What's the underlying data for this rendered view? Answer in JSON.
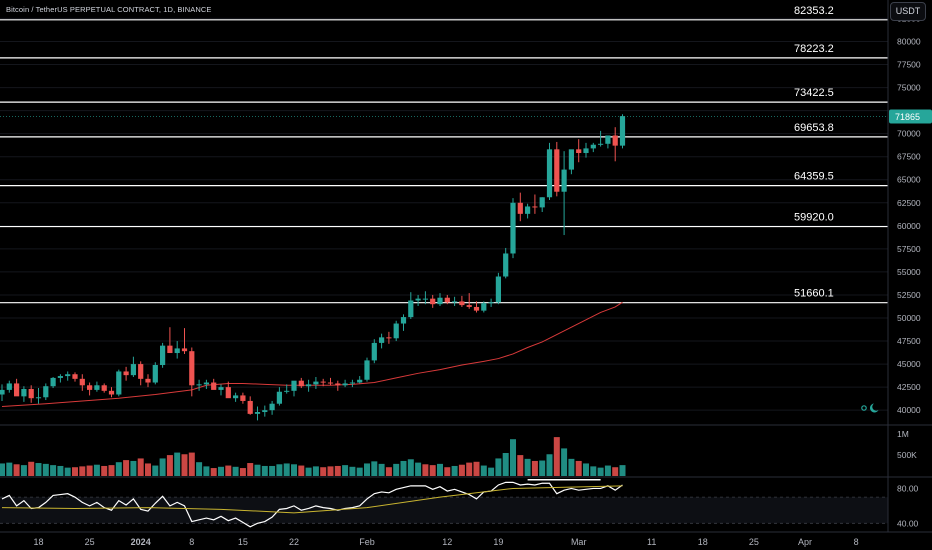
{
  "header": {
    "title": "Bitcoin / TetherUS PERPETUAL CONTRACT, 1D, BINANCE",
    "currency": "USDT"
  },
  "icons": {
    "theme": "moon-icon",
    "settings": "gear-icon"
  },
  "colors": {
    "background": "#000000",
    "up": "#26a69a",
    "down": "#ef5350",
    "ma": "#d83a3a",
    "rsi": "#ffffff",
    "rsi_ma": "#c8b430",
    "level_line": "#ffffff",
    "price_badge": "#26a69a"
  },
  "chart_data": [
    {
      "type": "candlestick",
      "title": "Bitcoin / TetherUS PERPETUAL CONTRACT, 1D, BINANCE",
      "ylim": [
        38500,
        84500
      ],
      "y_ticks": [
        40000,
        42500,
        45000,
        47500,
        50000,
        52500,
        55000,
        57500,
        60000,
        62500,
        65000,
        67500,
        70000,
        72500,
        75000,
        77500,
        80000,
        82500
      ],
      "y_tick_labels": [
        "40000",
        "42500",
        "45000",
        "47500",
        "50000",
        "52500",
        "55000",
        "57500",
        "60000",
        "62500",
        "65000",
        "67500",
        "70000",
        "72500",
        "75000",
        "77500",
        "80000",
        "82500"
      ],
      "x_tick_labels": [
        {
          "label": "18",
          "date": "2023-12-18"
        },
        {
          "label": "25",
          "date": "2023-12-25"
        },
        {
          "label": "2024",
          "date": "2024-01-01"
        },
        {
          "label": "8",
          "date": "2024-01-08"
        },
        {
          "label": "15",
          "date": "2024-01-15"
        },
        {
          "label": "22",
          "date": "2024-01-22"
        },
        {
          "label": "Feb",
          "date": "2024-02-01"
        },
        {
          "label": "12",
          "date": "2024-02-12"
        },
        {
          "label": "19",
          "date": "2024-02-19"
        },
        {
          "label": "Mar",
          "date": "2024-03-01"
        },
        {
          "label": "11",
          "date": "2024-03-11"
        },
        {
          "label": "18",
          "date": "2024-03-18"
        },
        {
          "label": "25",
          "date": "2024-03-25"
        },
        {
          "label": "Apr",
          "date": "2024-04-01"
        },
        {
          "label": "8",
          "date": "2024-04-08"
        }
      ],
      "first_date": "2023-12-13",
      "last_price": {
        "label": "71865",
        "value": 71865
      },
      "levels": [
        {
          "label": "82353.2",
          "value": 82353.2
        },
        {
          "label": "78223.2",
          "value": 78223.2
        },
        {
          "label": "73422.5",
          "value": 73422.5
        },
        {
          "label": "69653.8",
          "value": 69653.8
        },
        {
          "label": "64359.5",
          "value": 64359.5
        },
        {
          "label": "59920.0",
          "value": 59920.0
        },
        {
          "label": "51660.1",
          "value": 51660.1
        }
      ],
      "ohlc": [
        [
          41700,
          42800,
          41000,
          42200
        ],
        [
          42200,
          43200,
          41900,
          42900
        ],
        [
          42900,
          43400,
          41800,
          41500
        ],
        [
          41500,
          42600,
          40900,
          42300
        ],
        [
          42300,
          42700,
          40800,
          41300
        ],
        [
          41300,
          42400,
          40700,
          41400
        ],
        [
          41400,
          42900,
          41100,
          42600
        ],
        [
          42600,
          43600,
          42400,
          43500
        ],
        [
          43500,
          43900,
          43000,
          43700
        ],
        [
          43700,
          44200,
          43200,
          43900
        ],
        [
          43900,
          44100,
          43100,
          43400
        ],
        [
          43400,
          43900,
          42100,
          42700
        ],
        [
          42700,
          43000,
          41600,
          42200
        ],
        [
          42200,
          43100,
          42000,
          42700
        ],
        [
          42700,
          42900,
          41900,
          42100
        ],
        [
          42100,
          42500,
          41400,
          41700
        ],
        [
          41700,
          44400,
          41500,
          44200
        ],
        [
          44200,
          44700,
          43200,
          43800
        ],
        [
          43800,
          45800,
          43600,
          45000
        ],
        [
          45000,
          45300,
          42700,
          43400
        ],
        [
          43400,
          43900,
          42500,
          43000
        ],
        [
          43000,
          45200,
          42800,
          44900
        ],
        [
          44900,
          47300,
          44600,
          47000
        ],
        [
          47000,
          49000,
          46500,
          46200
        ],
        [
          46200,
          47500,
          45600,
          46700
        ],
        [
          46700,
          48900,
          46100,
          46400
        ],
        [
          46400,
          46800,
          41500,
          42700
        ],
        [
          42700,
          43300,
          42100,
          42800
        ],
        [
          42800,
          43300,
          42300,
          43000
        ],
        [
          43000,
          43400,
          42500,
          42200
        ],
        [
          42200,
          42800,
          41600,
          42500
        ],
        [
          42500,
          43100,
          41700,
          41300
        ],
        [
          41300,
          41900,
          40900,
          41600
        ],
        [
          41600,
          41900,
          40700,
          41000
        ],
        [
          41000,
          41500,
          39500,
          39600
        ],
        [
          39600,
          40400,
          38900,
          39800
        ],
        [
          39800,
          40500,
          39300,
          40000
        ],
        [
          40000,
          41000,
          39500,
          40700
        ],
        [
          40700,
          42500,
          40500,
          42000
        ],
        [
          42000,
          42800,
          41800,
          42100
        ],
        [
          42100,
          43000,
          41500,
          43200
        ],
        [
          43200,
          43500,
          42400,
          42600
        ],
        [
          42600,
          43300,
          42000,
          42800
        ],
        [
          42800,
          43600,
          42300,
          43100
        ],
        [
          43100,
          43400,
          42600,
          43000
        ],
        [
          43000,
          43500,
          42700,
          42900
        ],
        [
          42900,
          43200,
          42100,
          42700
        ],
        [
          42700,
          43300,
          42500,
          42900
        ],
        [
          42900,
          43300,
          42500,
          43000
        ],
        [
          43000,
          43700,
          42900,
          43300
        ],
        [
          43300,
          45700,
          43100,
          45400
        ],
        [
          45400,
          47700,
          45100,
          47300
        ],
        [
          47300,
          48300,
          46700,
          47900
        ],
        [
          47900,
          48500,
          47200,
          47800
        ],
        [
          47800,
          49700,
          47500,
          49400
        ],
        [
          49400,
          50400,
          48600,
          50100
        ],
        [
          50100,
          52800,
          49900,
          51900
        ],
        [
          51900,
          52500,
          51300,
          52100
        ],
        [
          52100,
          52900,
          51500,
          52100
        ],
        [
          52100,
          52500,
          51100,
          51500
        ],
        [
          51500,
          52700,
          51300,
          52200
        ],
        [
          52200,
          52500,
          51500,
          51700
        ],
        [
          51700,
          52300,
          51300,
          51800
        ],
        [
          51800,
          52400,
          51200,
          51400
        ],
        [
          51400,
          52700,
          51000,
          51200
        ],
        [
          51200,
          51800,
          50600,
          50800
        ],
        [
          50800,
          51800,
          50600,
          51600
        ],
        [
          51600,
          52100,
          51200,
          51700
        ],
        [
          51700,
          54900,
          51500,
          54500
        ],
        [
          54500,
          57600,
          54300,
          57000
        ],
        [
          57000,
          63000,
          56500,
          62500
        ],
        [
          62500,
          63600,
          60500,
          61300
        ],
        [
          61300,
          62400,
          60800,
          62100
        ],
        [
          62100,
          63400,
          61300,
          62000
        ],
        [
          62000,
          63100,
          61500,
          63100
        ],
        [
          63100,
          69000,
          62800,
          68300
        ],
        [
          68300,
          69100,
          63200,
          63700
        ],
        [
          63700,
          68100,
          59000,
          66100
        ],
        [
          66100,
          68000,
          65600,
          68300
        ],
        [
          68300,
          69400,
          66900,
          67900
        ],
        [
          67900,
          69000,
          67400,
          68400
        ],
        [
          68400,
          69000,
          68000,
          68800
        ],
        [
          68800,
          70300,
          68600,
          68900
        ],
        [
          68900,
          69500,
          68400,
          69800
        ],
        [
          69800,
          70700,
          67000,
          68700
        ],
        [
          68700,
          72100,
          68400,
          71900
        ]
      ],
      "ma_line": [
        [
          0,
          40400
        ],
        [
          6,
          40700
        ],
        [
          11,
          41000
        ],
        [
          16,
          41300
        ],
        [
          21,
          41700
        ],
        [
          26,
          42200
        ],
        [
          28,
          42700
        ],
        [
          31,
          42900
        ],
        [
          33,
          42900
        ],
        [
          36,
          42800
        ],
        [
          39,
          42700
        ],
        [
          42,
          42700
        ],
        [
          45,
          42700
        ],
        [
          48,
          42800
        ],
        [
          51,
          43000
        ],
        [
          54,
          43500
        ],
        [
          57,
          44000
        ],
        [
          60,
          44400
        ],
        [
          63,
          44900
        ],
        [
          66,
          45300
        ],
        [
          68,
          45600
        ],
        [
          70,
          46100
        ],
        [
          72,
          46800
        ],
        [
          74,
          47400
        ],
        [
          76,
          48200
        ],
        [
          78,
          49000
        ],
        [
          80,
          49800
        ],
        [
          82,
          50600
        ],
        [
          84,
          51200
        ],
        [
          85,
          51700
        ]
      ]
    },
    {
      "type": "bar",
      "title": "Volume",
      "y_ticks_labels": [
        {
          "label": "1M",
          "value": 1000000
        },
        {
          "label": "500K",
          "value": 500000
        }
      ],
      "ylim": [
        0,
        1100000
      ],
      "values": [
        300000,
        320000,
        280000,
        260000,
        340000,
        310000,
        290000,
        260000,
        240000,
        200000,
        210000,
        230000,
        250000,
        270000,
        240000,
        260000,
        330000,
        380000,
        360000,
        420000,
        300000,
        250000,
        420000,
        500000,
        560000,
        520000,
        560000,
        330000,
        230000,
        190000,
        220000,
        250000,
        220000,
        190000,
        310000,
        270000,
        240000,
        240000,
        280000,
        300000,
        280000,
        250000,
        200000,
        230000,
        210000,
        230000,
        240000,
        260000,
        220000,
        200000,
        300000,
        350000,
        290000,
        210000,
        290000,
        360000,
        400000,
        320000,
        280000,
        260000,
        290000,
        210000,
        240000,
        270000,
        320000,
        340000,
        250000,
        200000,
        420000,
        550000,
        880000,
        500000,
        410000,
        360000,
        370000,
        520000,
        930000,
        660000,
        410000,
        360000,
        300000,
        230000,
        200000,
        250000,
        210000,
        260000
      ],
      "up": [
        1,
        1,
        0,
        1,
        0,
        1,
        1,
        1,
        1,
        1,
        0,
        0,
        0,
        1,
        0,
        0,
        1,
        0,
        1,
        0,
        0,
        1,
        1,
        0,
        1,
        0,
        0,
        1,
        1,
        0,
        1,
        0,
        1,
        0,
        0,
        1,
        1,
        1,
        1,
        1,
        1,
        0,
        1,
        1,
        0,
        0,
        0,
        1,
        1,
        1,
        1,
        1,
        1,
        0,
        1,
        1,
        1,
        1,
        0,
        0,
        1,
        0,
        1,
        0,
        0,
        0,
        1,
        1,
        1,
        1,
        1,
        0,
        1,
        0,
        1,
        1,
        0,
        1,
        1,
        0,
        1,
        1,
        1,
        1,
        0,
        1
      ]
    },
    {
      "type": "line",
      "title": "RSI",
      "ylim": [
        30,
        92
      ],
      "y_ticks": [
        {
          "label": "80.00",
          "value": 80
        },
        {
          "label": "40.00",
          "value": 40
        }
      ],
      "band": [
        40,
        70
      ],
      "rsi": [
        68,
        72,
        60,
        66,
        57,
        58,
        64,
        72,
        73,
        74,
        70,
        64,
        60,
        64,
        58,
        55,
        66,
        61,
        68,
        56,
        54,
        63,
        71,
        60,
        64,
        60,
        42,
        44,
        46,
        44,
        48,
        43,
        46,
        41,
        36,
        40,
        42,
        47,
        56,
        57,
        60,
        55,
        57,
        60,
        58,
        57,
        55,
        57,
        58,
        60,
        68,
        74,
        76,
        75,
        79,
        81,
        83,
        83,
        83,
        79,
        82,
        77,
        79,
        76,
        73,
        68,
        76,
        77,
        84,
        87,
        87,
        84,
        85,
        84,
        86,
        86,
        74,
        78,
        80,
        78,
        79,
        80,
        80,
        83,
        78,
        84
      ],
      "rsi_ma": [
        [
          0,
          58
        ],
        [
          10,
          57
        ],
        [
          20,
          58
        ],
        [
          30,
          56
        ],
        [
          40,
          52
        ],
        [
          50,
          58
        ],
        [
          60,
          70
        ],
        [
          70,
          80
        ],
        [
          85,
          83
        ]
      ]
    }
  ]
}
